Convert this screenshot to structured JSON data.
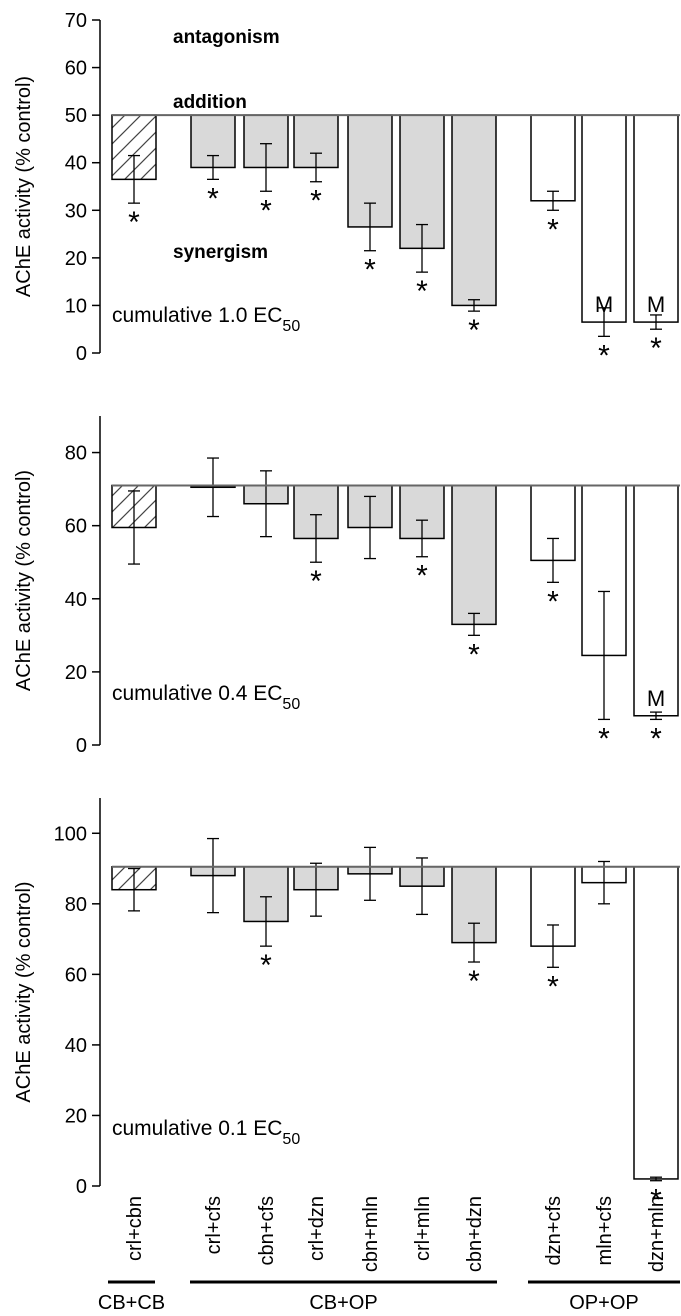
{
  "chart_data": {
    "type": "bar",
    "ylabel": "AChE activity (% control)",
    "categories": [
      "crl+cbn",
      "crl+cfs",
      "cbn+cfs",
      "crl+dzn",
      "cbn+mln",
      "crl+mln",
      "cbn+dzn",
      "dzn+cfs",
      "mln+cfs",
      "dzn+mln"
    ],
    "category_styles": [
      "hatched",
      "gray",
      "gray",
      "gray",
      "gray",
      "gray",
      "gray",
      "white",
      "white",
      "white"
    ],
    "groups": [
      {
        "label": "CB+CB",
        "from": 0,
        "to": 0
      },
      {
        "label": "CB+OP",
        "from": 1,
        "to": 6
      },
      {
        "label": "OP+OP",
        "from": 7,
        "to": 9
      }
    ],
    "colors": {
      "gray_fill": "#d9d9d9",
      "white_fill": "#ffffff",
      "line": "#000000",
      "reference_line": "#666666"
    },
    "panels": [
      {
        "label_main": "cumulative 1.0 EC",
        "label_sub": "50",
        "ylim": [
          0,
          70
        ],
        "yticks": [
          0,
          10,
          20,
          30,
          40,
          50,
          60,
          70
        ],
        "reference": 50,
        "annotations": [
          "antagonism",
          "addition",
          "synergism"
        ],
        "values": [
          36.5,
          39,
          39,
          39,
          26.5,
          22,
          10,
          32,
          6.5,
          6.5
        ],
        "errors": [
          5,
          2.5,
          5,
          3,
          5,
          5,
          1.2,
          2,
          3,
          1.5
        ],
        "markers": [
          "*",
          "*",
          "*",
          "*",
          "*",
          "*",
          "*",
          "*",
          "M*",
          "M*"
        ]
      },
      {
        "label_main": "cumulative 0.4 EC",
        "label_sub": "50",
        "ylim": [
          0,
          90
        ],
        "yticks": [
          0,
          20,
          40,
          60,
          80
        ],
        "reference": 71,
        "values": [
          59.5,
          70.5,
          66,
          56.5,
          59.5,
          56.5,
          33,
          50.5,
          24.5,
          8
        ],
        "errors": [
          10,
          8,
          9,
          6.5,
          8.5,
          5,
          3,
          6,
          17.5,
          1
        ],
        "markers": [
          "",
          "",
          "",
          "*",
          "",
          "*",
          "*",
          "*",
          "*",
          "M*"
        ]
      },
      {
        "label_main": "cumulative 0.1 EC",
        "label_sub": "50",
        "ylim": [
          0,
          110
        ],
        "yticks": [
          0,
          20,
          40,
          60,
          80,
          100
        ],
        "reference": 90.5,
        "values": [
          84,
          88,
          75,
          84,
          88.5,
          85,
          69,
          68,
          86,
          2
        ],
        "errors": [
          6,
          10.5,
          7,
          7.5,
          7.5,
          8,
          5.5,
          6,
          6,
          0.5
        ],
        "markers": [
          "",
          "",
          "*",
          "",
          "",
          "",
          "*",
          "*",
          "",
          "*"
        ]
      }
    ]
  }
}
